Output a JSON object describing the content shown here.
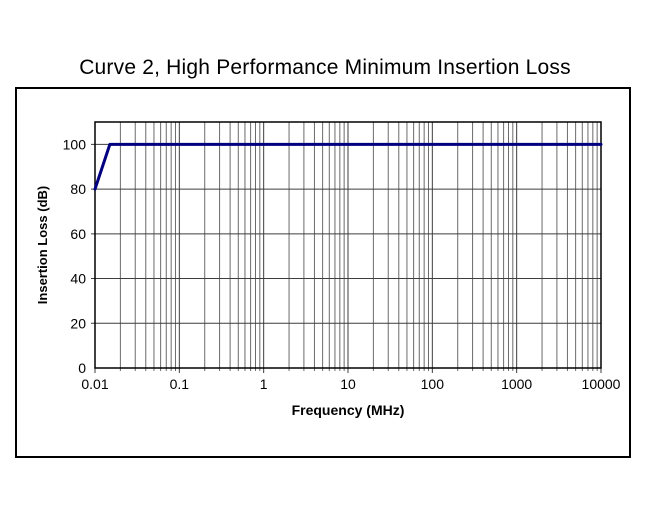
{
  "page": {
    "title": "Curve 2, High Performance Minimum Insertion Loss"
  },
  "chart_data": {
    "type": "line",
    "title": "Curve 2, High Performance Minimum Insertion Loss",
    "xlabel": "Frequency (MHz)",
    "ylabel": "Insertion Loss (dB)",
    "x_scale": "log",
    "xlim": [
      0.01,
      10000
    ],
    "ylim": [
      0,
      110
    ],
    "y_ticks": [
      0,
      20,
      40,
      60,
      80,
      100
    ],
    "x_ticks": [
      {
        "value": 0.01,
        "label": "0.01"
      },
      {
        "value": 0.1,
        "label": "0.1"
      },
      {
        "value": 1,
        "label": "1"
      },
      {
        "value": 10,
        "label": "10"
      },
      {
        "value": 100,
        "label": "100"
      },
      {
        "value": 1000,
        "label": "1000"
      },
      {
        "value": 10000,
        "label": "10000"
      }
    ],
    "grid": {
      "major": true,
      "minor": true,
      "minor_subdivisions": [
        2,
        3,
        4,
        5,
        6,
        7,
        8,
        9
      ]
    },
    "legend": "none",
    "colors": {
      "line": "#000080",
      "grid_major": "#3d3d3d",
      "grid_minor": "#6b6b6b",
      "frame": "#000000",
      "text": "#000000",
      "background": "#ffffff"
    },
    "series": [
      {
        "name": "Curve 2 minimum insertion loss",
        "color": "#000080",
        "points": [
          [
            0.01,
            80
          ],
          [
            0.015,
            100
          ],
          [
            10000,
            100
          ]
        ]
      }
    ]
  }
}
